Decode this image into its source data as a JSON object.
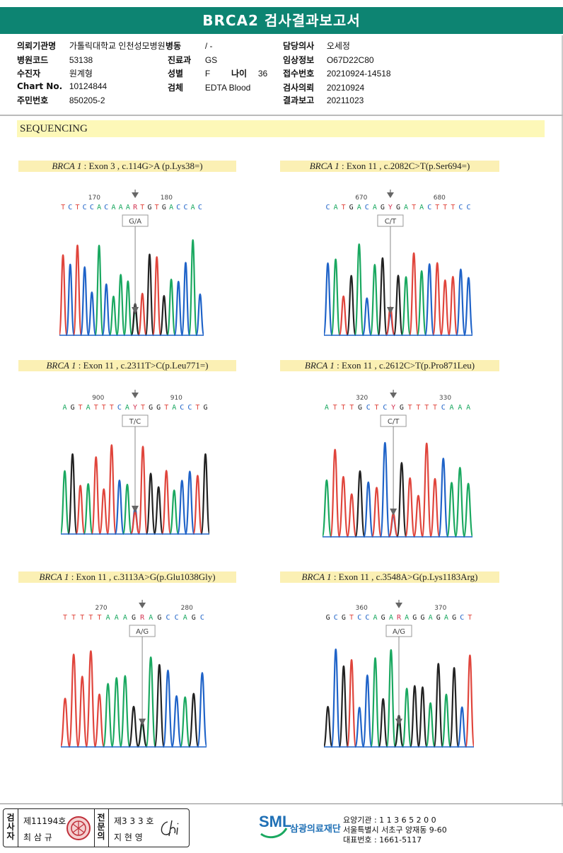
{
  "report": {
    "title": "BRCA2 검사결과보고서"
  },
  "patient": {
    "institution": {
      "label": "의뢰기관명",
      "value": "가톨릭대학교 인천성모병원"
    },
    "ward": {
      "label": "병동",
      "value": "/ -"
    },
    "physician": {
      "label": "담당의사",
      "value": "오세정"
    },
    "hospital_code": {
      "label": "병원코드",
      "value": "53138"
    },
    "department": {
      "label": "진료과",
      "value": "GS"
    },
    "clinical_info": {
      "label": "임상정보",
      "value": "O67D22C80"
    },
    "examinee": {
      "label": "수진자",
      "value": "원계형"
    },
    "sex": {
      "label": "성별",
      "value": "F"
    },
    "age": {
      "label": "나이",
      "value": "36"
    },
    "accession": {
      "label": "접수번호",
      "value": "20210924-14518"
    },
    "chart_no": {
      "label": "Chart No.",
      "value": "10124844"
    },
    "specimen": {
      "label": "검체",
      "value": "EDTA Blood"
    },
    "request_date": {
      "label": "검사의뢰",
      "value": "20210924"
    },
    "id_no": {
      "label": "주민번호",
      "value": "850205-2"
    },
    "report_date": {
      "label": "결과보고",
      "value": "20211023"
    }
  },
  "section": {
    "title": "SEQUENCING"
  },
  "variants": [
    {
      "gene": "BRCA 1",
      "desc": " : Exon 3 , c.114G>A (p.Lys38=)",
      "pos_left": "170",
      "pos_right": "180",
      "call": "G/A",
      "seq": [
        "T",
        "C",
        "T",
        "C",
        "C",
        "A",
        "C",
        "A",
        "A",
        "A",
        "R",
        "T",
        "G",
        "T",
        "G",
        "A",
        "C",
        "C",
        "A",
        "C"
      ],
      "het_index": 10
    },
    {
      "gene": "BRCA 1",
      "desc": " : Exon 11 , c.2082C>T(p.Ser694=)",
      "pos_left": "670",
      "pos_right": "680",
      "call": "C/T",
      "seq": [
        "C",
        "A",
        "T",
        "G",
        "A",
        "C",
        "A",
        "G",
        "Y",
        "G",
        "A",
        "T",
        "A",
        "C",
        "T",
        "T",
        "T",
        "C",
        "C"
      ],
      "het_index": 8
    },
    {
      "gene": "BRCA 1",
      "desc": " : Exon 11 , c.2311T>C(p.Leu771=)",
      "pos_left": "900",
      "pos_right": "910",
      "call": "T/C",
      "seq": [
        "A",
        "G",
        "T",
        "A",
        "T",
        "T",
        "T",
        "C",
        "A",
        "Y",
        "T",
        "G",
        "G",
        "T",
        "A",
        "C",
        "C",
        "T",
        "G"
      ],
      "het_index": 9
    },
    {
      "gene": "BRCA 1",
      "desc": " : Exon 11 , c.2612C>T(p.Pro871Leu)",
      "pos_left": "320",
      "pos_right": "330",
      "call": "C/T",
      "seq": [
        "A",
        "T",
        "T",
        "T",
        "G",
        "C",
        "T",
        "C",
        "Y",
        "G",
        "T",
        "T",
        "T",
        "T",
        "C",
        "A",
        "A",
        "A"
      ],
      "het_index": 8
    },
    {
      "gene": "BRCA 1",
      "desc": " : Exon 11 , c.3113A>G(p.Glu1038Gly)",
      "pos_left": "270",
      "pos_right": "280",
      "call": "A/G",
      "seq": [
        "T",
        "T",
        "T",
        "T",
        "T",
        "A",
        "A",
        "A",
        "G",
        "R",
        "A",
        "G",
        "C",
        "C",
        "A",
        "G",
        "C"
      ],
      "het_index": 9
    },
    {
      "gene": "BRCA 1",
      "desc": " : Exon 11 , c.3548A>G(p.Lys1183Arg)",
      "pos_left": "360",
      "pos_right": "370",
      "call": "A/G",
      "seq": [
        "G",
        "C",
        "G",
        "T",
        "C",
        "C",
        "A",
        "G",
        "A",
        "R",
        "A",
        "G",
        "G",
        "A",
        "G",
        "A",
        "G",
        "C",
        "T"
      ],
      "het_index": 9
    }
  ],
  "colors": {
    "A": "#1aa860",
    "C": "#1f63c8",
    "G": "#222222",
    "T": "#e0453c",
    "het": "#d2314f",
    "accent": "#0d8472"
  },
  "footer": {
    "examiner": {
      "vlabel": [
        "검",
        "사",
        "자"
      ],
      "license": "제11194호",
      "name": "최 삼 규"
    },
    "specialist": {
      "vlabel": [
        "전",
        "문",
        "의"
      ],
      "license": "제3 3 3 호",
      "name": "지 현 영"
    },
    "org_logo": "SML",
    "org_name": "삼광의료재단",
    "code_line": "요양기관 : 1 1 3 6 5 2 0 0",
    "address": "서울특별시 서초구 양재동 9-60",
    "phone": "대표번호 : 1661-5117"
  }
}
